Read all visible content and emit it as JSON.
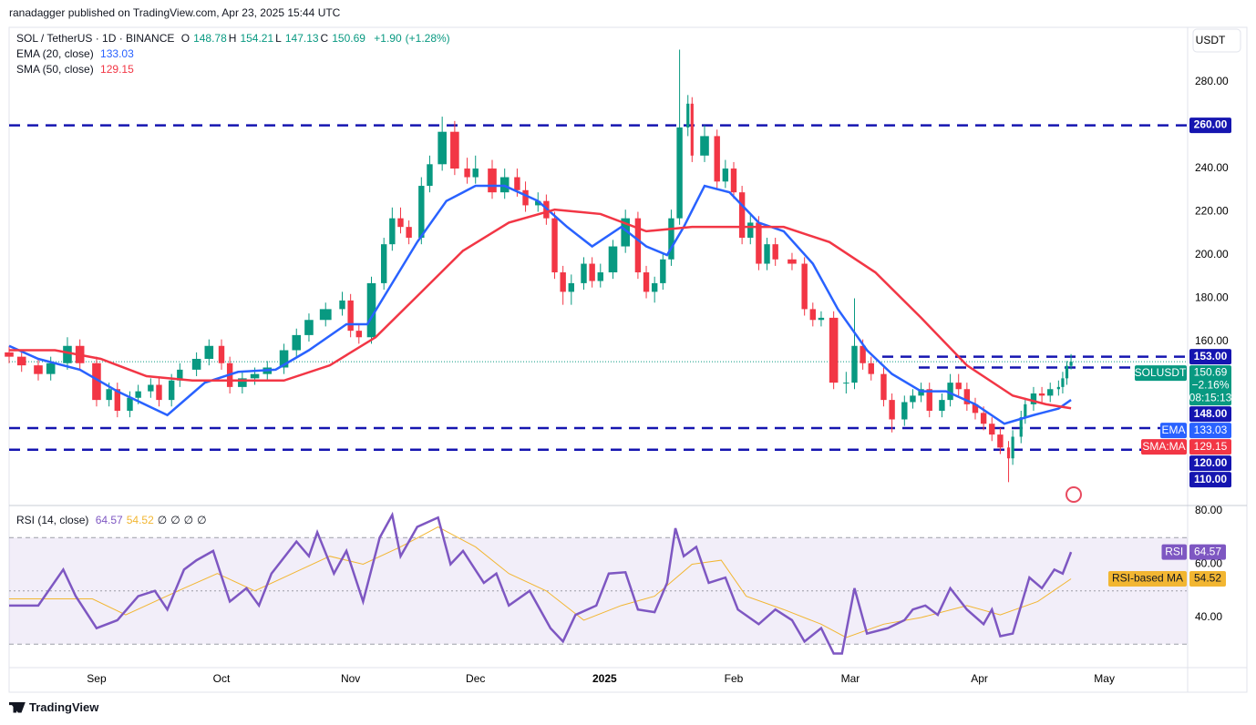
{
  "header": {
    "text": "ranadagger published on TradingView.com, Apr 23, 2025 15:44 UTC"
  },
  "footer": {
    "brand": "TradingView"
  },
  "chart_data": [
    {
      "type": "candlestick",
      "title": "SOL / TetherUS · 1D · BINANCE",
      "currency": "USDT",
      "ohlc": [
        {
          "key": "O",
          "value": 148.78
        },
        {
          "key": "H",
          "value": 154.21
        },
        {
          "key": "L",
          "value": 147.13
        },
        {
          "key": "C",
          "value": 150.69
        }
      ],
      "change": {
        "value": 1.9,
        "label": "+1.90"
      },
      "change_pct": {
        "value": 1.28,
        "label": "(+1.28%)"
      },
      "up_color": "#089981",
      "down_color": "#f23645",
      "x": [
        0,
        3,
        7,
        10,
        14,
        17,
        21,
        24,
        26,
        29,
        31,
        34,
        36,
        39,
        41,
        45,
        48,
        51,
        53,
        56,
        59,
        62,
        66,
        69,
        72,
        76,
        80,
        82,
        84,
        87,
        90,
        92,
        94,
        96,
        99,
        101,
        104,
        107,
        110,
        112,
        116,
        119,
        122,
        124,
        127,
        129,
        131,
        133,
        135,
        138,
        140,
        142,
        145,
        148,
        151,
        153,
        155,
        157,
        159,
        161,
        163,
        164,
        167,
        170,
        172,
        174,
        176,
        178,
        180,
        182,
        184,
        188,
        191,
        193,
        195,
        198,
        201,
        203,
        205,
        207,
        210,
        212,
        215,
        217,
        219,
        221,
        224,
        226,
        228,
        230,
        232,
        234,
        236,
        238,
        240,
        241,
        243,
        244,
        246,
        248,
        250,
        252,
        253,
        254,
        255
      ],
      "open": [
        155,
        153,
        149,
        145,
        150,
        158,
        150,
        133,
        138,
        128,
        134,
        137,
        140,
        133,
        142,
        147,
        152,
        158,
        150,
        139,
        143,
        145,
        148,
        156,
        163,
        170,
        175,
        179,
        165,
        162,
        187,
        205,
        217,
        213,
        208,
        232,
        242,
        257,
        240,
        236,
        240,
        229,
        236,
        230,
        223,
        225,
        217,
        192,
        183,
        187,
        196,
        188,
        192,
        204,
        217,
        192,
        183,
        187,
        198,
        217,
        259,
        270,
        246,
        255,
        234,
        240,
        229,
        208,
        215,
        196,
        205,
        198,
        196,
        175,
        170,
        171,
        141,
        141,
        158,
        150,
        145,
        133,
        124,
        132,
        135,
        138,
        128,
        133,
        141,
        138,
        131,
        127,
        122,
        117,
        111,
        106,
        116,
        125,
        131,
        136,
        135,
        138,
        139,
        143,
        148.78
      ],
      "high": [
        158,
        156,
        152,
        153,
        162,
        161,
        153,
        141,
        141,
        137,
        140,
        143,
        143,
        145,
        150,
        155,
        161,
        161,
        153,
        146,
        148,
        151,
        159,
        166,
        173,
        178,
        183,
        182,
        168,
        190,
        208,
        222,
        222,
        216,
        236,
        246,
        264,
        262,
        245,
        246,
        244,
        240,
        240,
        234,
        229,
        228,
        220,
        195,
        191,
        199,
        199,
        196,
        207,
        221,
        220,
        195,
        190,
        201,
        221,
        295,
        274,
        273,
        260,
        258,
        244,
        243,
        232,
        219,
        218,
        208,
        208,
        201,
        199,
        178,
        174,
        174,
        146,
        180,
        161,
        153,
        148,
        136,
        135,
        138,
        141,
        141,
        136,
        145,
        145,
        141,
        134,
        130,
        125,
        120,
        114,
        119,
        128,
        134,
        139,
        139,
        141,
        142,
        146,
        151,
        154.21
      ],
      "low": [
        150,
        146,
        142,
        142,
        147,
        147,
        130,
        130,
        125,
        125,
        131,
        134,
        130,
        130,
        139,
        144,
        149,
        147,
        136,
        136,
        140,
        142,
        145,
        153,
        160,
        167,
        172,
        162,
        159,
        159,
        184,
        202,
        210,
        205,
        205,
        229,
        239,
        237,
        233,
        233,
        226,
        226,
        227,
        220,
        220,
        214,
        189,
        177,
        177,
        184,
        185,
        185,
        189,
        201,
        189,
        180,
        178,
        184,
        195,
        214,
        255,
        243,
        243,
        231,
        231,
        226,
        205,
        205,
        193,
        193,
        195,
        193,
        172,
        167,
        167,
        138,
        136,
        138,
        147,
        142,
        130,
        118,
        121,
        129,
        132,
        125,
        125,
        130,
        135,
        128,
        124,
        119,
        114,
        108,
        95,
        103,
        113,
        122,
        128,
        132,
        132,
        135,
        136,
        140,
        147.13
      ],
      "close": [
        153,
        149,
        145,
        150,
        158,
        150,
        133,
        138,
        128,
        134,
        137,
        140,
        133,
        142,
        147,
        152,
        158,
        150,
        139,
        143,
        145,
        148,
        156,
        163,
        170,
        175,
        179,
        165,
        162,
        187,
        205,
        217,
        213,
        208,
        232,
        242,
        257,
        240,
        236,
        240,
        229,
        236,
        230,
        223,
        225,
        217,
        192,
        183,
        187,
        196,
        188,
        192,
        204,
        217,
        192,
        183,
        187,
        198,
        217,
        259,
        270,
        246,
        255,
        234,
        240,
        229,
        208,
        215,
        196,
        205,
        198,
        196,
        175,
        170,
        171,
        141,
        141,
        158,
        150,
        145,
        133,
        124,
        132,
        135,
        138,
        128,
        133,
        141,
        138,
        131,
        127,
        122,
        117,
        111,
        106,
        116,
        125,
        131,
        136,
        135,
        138,
        139,
        143,
        148.78,
        150.69
      ],
      "xlim": [
        0,
        283
      ],
      "xticks": [
        {
          "value": 21,
          "label": "Sep"
        },
        {
          "value": 51,
          "label": "Oct"
        },
        {
          "value": 82,
          "label": "Nov"
        },
        {
          "value": 112,
          "label": "Dec"
        },
        {
          "value": 143,
          "label": "2025"
        },
        {
          "value": 174,
          "label": "Feb"
        },
        {
          "value": 202,
          "label": "Mar"
        },
        {
          "value": 233,
          "label": "Apr"
        },
        {
          "value": 263,
          "label": "May"
        }
      ],
      "ylim": [
        84.2,
        305.3
      ],
      "yticks": [
        {
          "value": 160,
          "label": "160.00"
        },
        {
          "value": 180,
          "label": "180.00"
        },
        {
          "value": 200,
          "label": "200.00"
        },
        {
          "value": 220,
          "label": "220.00"
        },
        {
          "value": 240,
          "label": "240.00"
        },
        {
          "value": 280,
          "label": "280.00"
        }
      ],
      "indicators": [
        {
          "name": "EMA (20, close)",
          "badge": "EMA",
          "color": "#2962ff",
          "x": [
            0,
            7,
            17,
            26,
            38,
            47,
            55,
            64,
            72,
            81,
            86,
            92,
            98,
            105,
            112,
            119,
            127,
            134,
            140,
            147,
            153,
            158,
            162,
            167,
            173,
            180,
            186,
            193,
            199,
            206,
            212,
            219,
            225,
            232,
            239,
            246,
            252,
            255
          ],
          "values": [
            158,
            152,
            147,
            137,
            126,
            141,
            146,
            147,
            156,
            168,
            168,
            187,
            206,
            225,
            232,
            232,
            225,
            213,
            204,
            213,
            204,
            200,
            213,
            232,
            229,
            215,
            211,
            196,
            175,
            156,
            145,
            137,
            137,
            131,
            122,
            126,
            129,
            133.03
          ]
        },
        {
          "name": "SMA (50, close)",
          "badge": "SMA:MA",
          "color": "#f23645",
          "x": [
            0,
            11,
            22,
            33,
            44,
            55,
            66,
            77,
            88,
            98,
            109,
            120,
            131,
            142,
            153,
            164,
            175,
            186,
            197,
            208,
            219,
            230,
            241,
            249,
            255
          ],
          "values": [
            156,
            156,
            152,
            144,
            142,
            142,
            142,
            149,
            162,
            181,
            202,
            215,
            221,
            219,
            211,
            213,
            213,
            213,
            206,
            192,
            171,
            149,
            135,
            131,
            129.15
          ]
        }
      ],
      "levels": [
        {
          "value": 260,
          "label": "260.00"
        },
        {
          "value": 153,
          "label": "153.00"
        },
        {
          "value": 148,
          "label": "148.00"
        },
        {
          "value": 120,
          "label": "120.00"
        },
        {
          "value": 110,
          "label": "110.00"
        }
      ],
      "level_color": "#1515b0",
      "last_price": {
        "symbol": "SOLUSDT",
        "value": 150.69,
        "change": {
          "value": -2.16,
          "label": "−2.16%"
        },
        "countdown": "08:15:13"
      }
    },
    {
      "type": "rsi",
      "title": "RSI (14, close)",
      "placeholders": [
        "∅",
        "∅",
        "∅",
        "∅"
      ],
      "series": [
        {
          "name": "RSI",
          "color": "#7e57c2",
          "x": [
            0,
            7,
            13,
            16,
            21,
            26,
            31,
            35,
            38,
            42,
            45,
            49,
            53,
            57,
            60,
            63,
            69,
            72,
            74,
            78,
            81,
            85,
            89,
            92,
            94,
            98,
            103,
            106,
            109,
            114,
            117,
            120,
            125,
            130,
            133,
            136,
            141,
            144,
            148,
            151,
            155,
            158,
            160,
            162,
            165,
            168,
            172,
            175,
            180,
            184,
            188,
            191,
            195,
            198,
            200,
            203,
            206,
            211,
            215,
            217,
            220,
            223,
            226,
            230,
            234,
            236,
            238,
            241,
            243,
            245,
            248,
            251,
            253,
            255
          ],
          "values": [
            44.5,
            44.5,
            58,
            48,
            36,
            39,
            48,
            50,
            43,
            58,
            61.5,
            65,
            46,
            51,
            44.5,
            56.5,
            68.5,
            63,
            72,
            56.5,
            65,
            46,
            70,
            78.5,
            63,
            74,
            77.5,
            60,
            65,
            53,
            56.5,
            44.5,
            50,
            36,
            31,
            41,
            44.5,
            56.5,
            57,
            43,
            42,
            53,
            73.5,
            63,
            66.5,
            53,
            55,
            43,
            37.5,
            43,
            39,
            31,
            36,
            26.5,
            26.5,
            51,
            34,
            36,
            39,
            43,
            44.5,
            41,
            51,
            43,
            37.5,
            43,
            33,
            34,
            44.5,
            55,
            51,
            58,
            56.5,
            64.57
          ]
        },
        {
          "name": "RSI-based MA",
          "color": "#f2b632",
          "x": [
            0,
            20,
            28,
            42,
            50,
            59,
            68,
            77,
            85,
            94,
            103,
            112,
            120,
            129,
            138,
            147,
            155,
            164,
            171,
            177,
            186,
            195,
            201,
            210,
            219,
            230,
            238,
            247,
            255
          ],
          "values": [
            47,
            47,
            41,
            51,
            56.5,
            50,
            56.5,
            63,
            60,
            66.5,
            74,
            66.5,
            56.5,
            50,
            39,
            44.5,
            48,
            60,
            61.5,
            48,
            43,
            37.5,
            32.5,
            37.5,
            40,
            44.5,
            41,
            46,
            54.52
          ]
        }
      ],
      "ylim": [
        21.2,
        81.7
      ],
      "yticks": [
        {
          "value": 80,
          "label": "80.00"
        },
        {
          "value": 60,
          "label": "60.00"
        },
        {
          "value": 40,
          "label": "40.00"
        }
      ],
      "levels": [
        70,
        50,
        30
      ]
    }
  ]
}
